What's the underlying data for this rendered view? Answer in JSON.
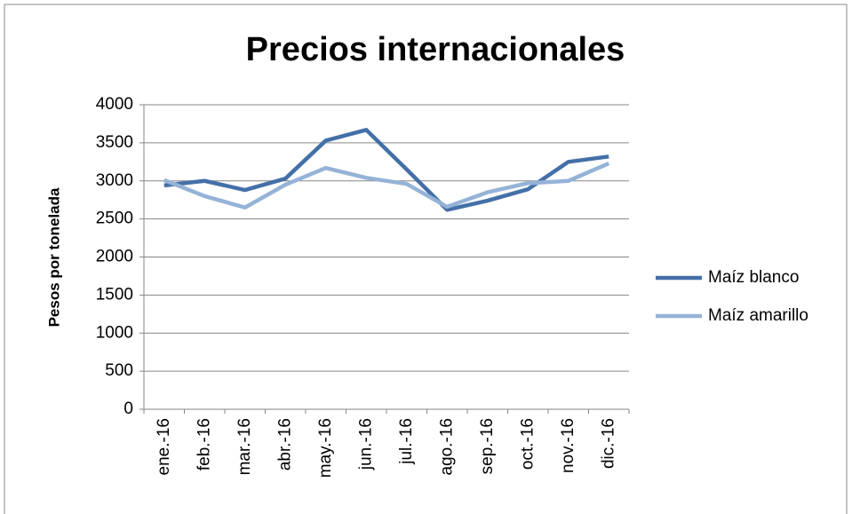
{
  "chart_data": {
    "type": "line",
    "title": "Precios internacionales",
    "y_label": "Pesos por tonelada",
    "categories": [
      "ene.-16",
      "feb.-16",
      "mar.-16",
      "abr.-16",
      "may.-16",
      "jun.-16",
      "jul.-16",
      "ago.-16",
      "sep.-16",
      "oct.-16",
      "nov.-16",
      "dic.-16"
    ],
    "series": [
      {
        "name": "Maíz blanco",
        "color": "#4470a8",
        "values": [
          2940,
          3000,
          2880,
          3030,
          3530,
          3670,
          3150,
          2620,
          2740,
          2890,
          3250,
          3320
        ]
      },
      {
        "name": "Maíz amarillo",
        "color": "#95b3d7",
        "values": [
          3010,
          2800,
          2650,
          2950,
          3170,
          3040,
          2960,
          2660,
          2850,
          2970,
          3000,
          3230
        ]
      }
    ],
    "ylim": [
      0,
      4000
    ],
    "yticks": [
      0,
      500,
      1000,
      1500,
      2000,
      2500,
      3000,
      3500,
      4000
    ],
    "grid": true,
    "legend": "right"
  }
}
